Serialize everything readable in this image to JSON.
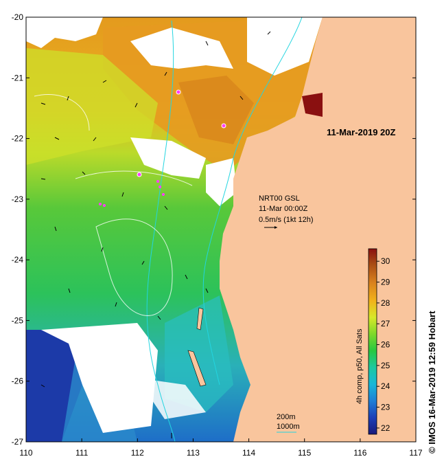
{
  "map": {
    "title": "11-Mar-2019 20Z",
    "lon_range": [
      110,
      117
    ],
    "lat_range": [
      -27,
      -20
    ],
    "lon_ticks": [
      "110",
      "111",
      "112",
      "113",
      "114",
      "115",
      "116",
      "117"
    ],
    "lat_ticks": [
      "-20",
      "-21",
      "-22",
      "-23",
      "-24",
      "-25",
      "-26",
      "-27"
    ],
    "current_info": [
      "NRT00 GSL",
      "11-Mar 00:00Z",
      "0.5m/s (1kt 12h)"
    ],
    "contours": [
      "200m",
      "1000m"
    ],
    "land_color": "#f9c59d",
    "contour_color": "#23d5e0"
  },
  "colorbar": {
    "label": "4h comp, p50, All Sats",
    "ticks": [
      "22",
      "23",
      "24",
      "25",
      "26",
      "27",
      "28",
      "29",
      "30"
    ],
    "range": [
      21.7,
      30.6
    ],
    "colors": [
      "#1a1a7a",
      "#1c3fb8",
      "#1e7fd6",
      "#18b7d8",
      "#1cc9a0",
      "#28c840",
      "#7ed82a",
      "#d8e82a",
      "#f2b21a",
      "#d8801e",
      "#a84a14",
      "#8a1010"
    ]
  },
  "credit": "IMOS 16-Mar-2019 12:59 Hobart",
  "credit_symbol": "©",
  "float_icon": "magenta-float-marker"
}
